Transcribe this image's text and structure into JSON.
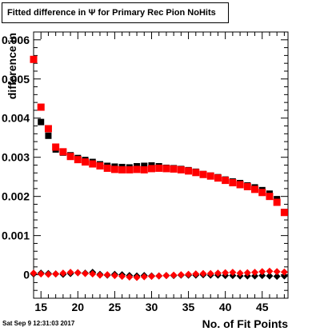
{
  "title": "Fitted difference in  Ψ  for Primary Rec Pion NoHits",
  "timestamp": "Sat Sep  9 12:31:03 2017",
  "chart_data": {
    "type": "scatter",
    "title": "Fitted difference in  Ψ  for Primary Rec Pion NoHits",
    "xlabel": "No. of Fit Points",
    "ylabel": "difference in",
    "xlim": [
      14,
      48.5
    ],
    "ylim": [
      -0.0006,
      0.0062
    ],
    "x_ticks": [
      {
        "v": 15,
        "label": "15"
      },
      {
        "v": 20,
        "label": "20"
      },
      {
        "v": 25,
        "label": "25"
      },
      {
        "v": 30,
        "label": "30"
      },
      {
        "v": 35,
        "label": "35"
      },
      {
        "v": 40,
        "label": "40"
      },
      {
        "v": 45,
        "label": "45"
      }
    ],
    "y_ticks": [
      {
        "v": 0,
        "label": "0"
      },
      {
        "v": 0.001,
        "label": "0.001"
      },
      {
        "v": 0.002,
        "label": "0.002"
      },
      {
        "v": 0.003,
        "label": "0.003"
      },
      {
        "v": 0.004,
        "label": "0.004"
      },
      {
        "v": 0.005,
        "label": "0.005"
      },
      {
        "v": 0.006,
        "label": "0.006"
      }
    ],
    "grid": false,
    "legend": "none",
    "series": [
      {
        "marker": "square",
        "color": "#000000",
        "x": [
          14,
          15,
          16,
          17,
          18,
          19,
          20,
          21,
          22,
          23,
          24,
          25,
          26,
          27,
          28,
          29,
          30,
          31,
          32,
          33,
          34,
          35,
          36,
          37,
          38,
          39,
          40,
          41,
          42,
          43,
          44,
          45,
          46,
          47,
          48
        ],
        "y": [
          0.0055,
          0.0039,
          0.00355,
          0.0032,
          0.00312,
          0.00305,
          0.00298,
          0.00293,
          0.00288,
          0.00282,
          0.00278,
          0.00276,
          0.00275,
          0.00274,
          0.00277,
          0.00278,
          0.00279,
          0.00277,
          0.00273,
          0.00272,
          0.0027,
          0.00267,
          0.00263,
          0.00257,
          0.00253,
          0.00249,
          0.00243,
          0.00238,
          0.00234,
          0.00228,
          0.00223,
          0.00216,
          0.00207,
          0.00193,
          0.0016
        ]
      },
      {
        "marker": "square",
        "color": "#ff0000",
        "x": [
          14,
          15,
          16,
          17,
          18,
          19,
          20,
          21,
          22,
          23,
          24,
          25,
          26,
          27,
          28,
          29,
          30,
          31,
          32,
          33,
          34,
          35,
          36,
          37,
          38,
          39,
          40,
          41,
          42,
          43,
          44,
          45,
          46,
          47,
          48
        ],
        "y": [
          0.0055,
          0.00428,
          0.00373,
          0.00326,
          0.00314,
          0.00302,
          0.00294,
          0.00288,
          0.00283,
          0.00278,
          0.00272,
          0.00269,
          0.00268,
          0.00268,
          0.00269,
          0.00268,
          0.00271,
          0.00272,
          0.00271,
          0.0027,
          0.00268,
          0.00265,
          0.00261,
          0.00256,
          0.00252,
          0.00247,
          0.00241,
          0.00235,
          0.0023,
          0.00225,
          0.00218,
          0.0021,
          0.002,
          0.00185,
          0.00159
        ]
      },
      {
        "marker": "diamond",
        "color": "#000000",
        "x": [
          14,
          15,
          16,
          17,
          18,
          19,
          20,
          21,
          22,
          23,
          24,
          25,
          26,
          27,
          28,
          29,
          30,
          31,
          32,
          33,
          34,
          35,
          36,
          37,
          38,
          39,
          40,
          41,
          42,
          43,
          44,
          45,
          46,
          47,
          48
        ],
        "y": [
          2e-05,
          4e-05,
          3e-05,
          2e-05,
          1e-05,
          3e-05,
          5e-05,
          4e-05,
          6e-05,
          1e-05,
          -1e-05,
          1e-05,
          0.0,
          -2e-05,
          -3e-05,
          -2e-05,
          -3e-05,
          -3e-05,
          -2e-05,
          -2e-05,
          -1e-05,
          -1e-05,
          -1e-05,
          0.0,
          -1e-05,
          -1e-05,
          -2e-05,
          -2e-05,
          -3e-05,
          -3e-05,
          -3e-05,
          -2e-05,
          -3e-05,
          -4e-05,
          -3e-05
        ]
      },
      {
        "marker": "diamond",
        "color": "#ff0000",
        "x": [
          14,
          15,
          16,
          17,
          18,
          19,
          20,
          21,
          22,
          23,
          24,
          25,
          26,
          27,
          28,
          29,
          30,
          31,
          32,
          33,
          34,
          35,
          36,
          37,
          38,
          39,
          40,
          41,
          42,
          43,
          44,
          45,
          46,
          47,
          48
        ],
        "y": [
          4e-05,
          2e-05,
          1e-05,
          2e-05,
          4e-05,
          6e-05,
          5e-05,
          3e-05,
          2e-05,
          -1e-05,
          0.0,
          -2e-05,
          -4e-05,
          -6e-05,
          -7e-05,
          -5e-05,
          -4e-05,
          -3e-05,
          -2e-05,
          -1e-05,
          0.0,
          1e-05,
          2e-05,
          3e-05,
          3e-05,
          4e-05,
          5e-05,
          6e-05,
          4e-05,
          5e-05,
          6e-05,
          8e-05,
          9e-05,
          8e-05,
          7e-05
        ]
      }
    ]
  }
}
